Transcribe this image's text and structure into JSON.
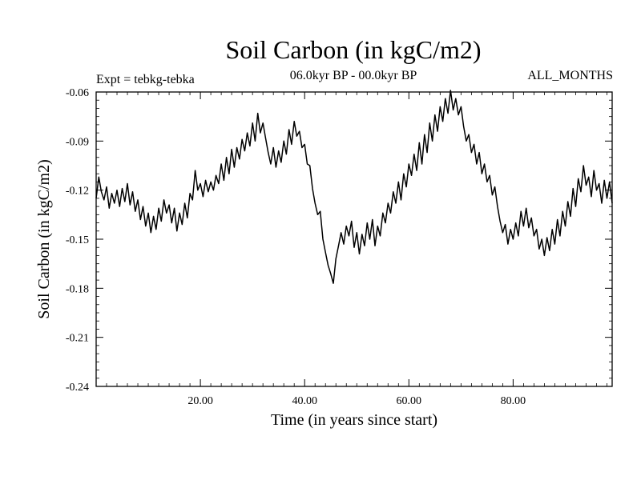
{
  "chart_data": {
    "type": "line",
    "title": "Soil Carbon (in kgC/m2)",
    "subtitle": "06.0kyr BP - 00.0kyr BP",
    "experiment_label": "Expt = tebkg-tebka",
    "months_label": "ALL_MONTHS",
    "xlabel": "Time (in years since start)",
    "ylabel": "Soil Carbon (in kgC/m2)",
    "xlim": [
      0,
      99
    ],
    "ylim": [
      -0.24,
      -0.06
    ],
    "x_ticks": [
      20,
      40,
      60,
      80
    ],
    "x_tick_labels": [
      "20.00",
      "40.00",
      "60.00",
      "80.00"
    ],
    "y_ticks": [
      -0.06,
      -0.09,
      -0.12,
      -0.15,
      -0.18,
      -0.21,
      -0.24
    ],
    "y_tick_labels": [
      "-0.06",
      "-0.09",
      "-0.12",
      "-0.15",
      "-0.18",
      "-0.21",
      "-0.24"
    ],
    "grid": false,
    "series": [
      {
        "name": "Soil Carbon",
        "color": "#000000",
        "x": [
          0,
          0.5,
          1,
          1.5,
          2,
          2.5,
          3,
          3.5,
          4,
          4.5,
          5,
          5.5,
          6,
          6.5,
          7,
          7.5,
          8,
          8.5,
          9,
          9.5,
          10,
          10.5,
          11,
          11.5,
          12,
          12.5,
          13,
          13.5,
          14,
          14.5,
          15,
          15.5,
          16,
          16.5,
          17,
          17.5,
          18,
          18.5,
          19,
          19.5,
          20,
          20.5,
          21,
          21.5,
          22,
          22.5,
          23,
          23.5,
          24,
          24.5,
          25,
          25.5,
          26,
          26.5,
          27,
          27.5,
          28,
          28.5,
          29,
          29.5,
          30,
          30.5,
          31,
          31.5,
          32,
          32.5,
          33,
          33.5,
          34,
          34.5,
          35,
          35.5,
          36,
          36.5,
          37,
          37.5,
          38,
          38.5,
          39,
          39.5,
          40,
          40.5,
          41,
          41.5,
          42,
          42.5,
          43,
          43.5,
          44,
          44.5,
          45,
          45.5,
          46,
          46.5,
          47,
          47.5,
          48,
          48.5,
          49,
          49.5,
          50,
          50.5,
          51,
          51.5,
          52,
          52.5,
          53,
          53.5,
          54,
          54.5,
          55,
          55.5,
          56,
          56.5,
          57,
          57.5,
          58,
          58.5,
          59,
          59.5,
          60,
          60.5,
          61,
          61.5,
          62,
          62.5,
          63,
          63.5,
          64,
          64.5,
          65,
          65.5,
          66,
          66.5,
          67,
          67.5,
          68,
          68.5,
          69,
          69.5,
          70,
          70.5,
          71,
          71.5,
          72,
          72.5,
          73,
          73.5,
          74,
          74.5,
          75,
          75.5,
          76,
          76.5,
          77,
          77.5,
          78,
          78.5,
          79,
          79.5,
          80,
          80.5,
          81,
          81.5,
          82,
          82.5,
          83,
          83.5,
          84,
          84.5,
          85,
          85.5,
          86,
          86.5,
          87,
          87.5,
          88,
          88.5,
          89,
          89.5,
          90,
          90.5,
          91,
          91.5,
          92,
          92.5,
          93,
          93.5,
          94,
          94.5,
          95,
          95.5,
          96,
          96.5,
          97,
          97.5,
          98,
          98.5,
          99
        ],
        "values": [
          -0.125,
          -0.112,
          -0.121,
          -0.126,
          -0.118,
          -0.131,
          -0.122,
          -0.128,
          -0.12,
          -0.13,
          -0.119,
          -0.127,
          -0.116,
          -0.129,
          -0.121,
          -0.133,
          -0.126,
          -0.138,
          -0.13,
          -0.142,
          -0.134,
          -0.146,
          -0.136,
          -0.144,
          -0.131,
          -0.139,
          -0.126,
          -0.134,
          -0.129,
          -0.14,
          -0.131,
          -0.145,
          -0.134,
          -0.141,
          -0.128,
          -0.137,
          -0.122,
          -0.126,
          -0.108,
          -0.12,
          -0.116,
          -0.124,
          -0.114,
          -0.121,
          -0.115,
          -0.12,
          -0.111,
          -0.116,
          -0.104,
          -0.114,
          -0.1,
          -0.11,
          -0.095,
          -0.106,
          -0.094,
          -0.101,
          -0.089,
          -0.096,
          -0.085,
          -0.093,
          -0.079,
          -0.09,
          -0.073,
          -0.085,
          -0.079,
          -0.088,
          -0.097,
          -0.104,
          -0.094,
          -0.106,
          -0.096,
          -0.103,
          -0.09,
          -0.098,
          -0.083,
          -0.092,
          -0.078,
          -0.087,
          -0.084,
          -0.094,
          -0.092,
          -0.104,
          -0.105,
          -0.119,
          -0.128,
          -0.135,
          -0.133,
          -0.15,
          -0.158,
          -0.166,
          -0.171,
          -0.177,
          -0.162,
          -0.154,
          -0.146,
          -0.153,
          -0.142,
          -0.148,
          -0.139,
          -0.155,
          -0.146,
          -0.159,
          -0.147,
          -0.154,
          -0.14,
          -0.15,
          -0.138,
          -0.154,
          -0.142,
          -0.148,
          -0.134,
          -0.14,
          -0.128,
          -0.134,
          -0.121,
          -0.128,
          -0.115,
          -0.126,
          -0.11,
          -0.118,
          -0.104,
          -0.111,
          -0.098,
          -0.108,
          -0.091,
          -0.104,
          -0.086,
          -0.097,
          -0.079,
          -0.09,
          -0.074,
          -0.084,
          -0.069,
          -0.078,
          -0.064,
          -0.073,
          -0.059,
          -0.071,
          -0.064,
          -0.074,
          -0.069,
          -0.081,
          -0.09,
          -0.086,
          -0.097,
          -0.092,
          -0.104,
          -0.097,
          -0.11,
          -0.104,
          -0.115,
          -0.111,
          -0.123,
          -0.118,
          -0.13,
          -0.139,
          -0.146,
          -0.141,
          -0.153,
          -0.144,
          -0.15,
          -0.14,
          -0.148,
          -0.133,
          -0.142,
          -0.131,
          -0.143,
          -0.137,
          -0.148,
          -0.144,
          -0.156,
          -0.15,
          -0.16,
          -0.149,
          -0.157,
          -0.144,
          -0.153,
          -0.138,
          -0.148,
          -0.133,
          -0.142,
          -0.127,
          -0.136,
          -0.119,
          -0.13,
          -0.113,
          -0.121,
          -0.105,
          -0.117,
          -0.112,
          -0.124,
          -0.108,
          -0.12,
          -0.116,
          -0.128,
          -0.114,
          -0.125,
          -0.115,
          -0.128
        ]
      }
    ]
  }
}
